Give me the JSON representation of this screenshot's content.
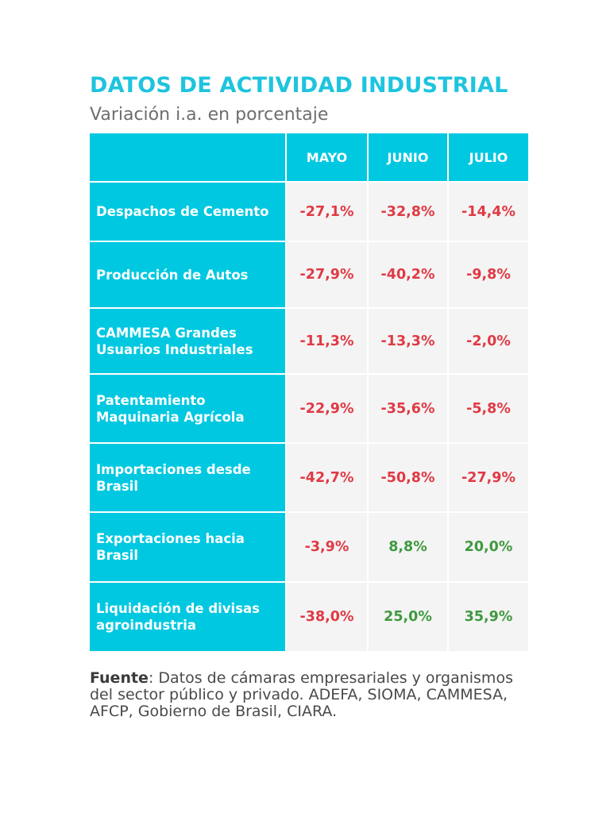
{
  "colors": {
    "title": "#1ec3de",
    "cell_bg": "#00c8e0",
    "negative": "#e03a45",
    "positive": "#3f9a3f"
  },
  "title": "DATOS DE ACTIVIDAD INDUSTRIAL",
  "subtitle": "Variación i.a. en porcentaje",
  "chart_data": {
    "type": "table",
    "title": "DATOS DE ACTIVIDAD INDUSTRIAL",
    "subtitle": "Variación i.a. en porcentaje",
    "columns": [
      "MAYO",
      "JUNIO",
      "JULIO"
    ],
    "rows": [
      {
        "label": "Despachos de Cemento",
        "values": [
          -27.1,
          -32.8,
          -14.4
        ],
        "display": [
          "-27,1%",
          "-32,8%",
          "-14,4%"
        ]
      },
      {
        "label": "Producción de Autos",
        "values": [
          -27.9,
          -40.2,
          -9.8
        ],
        "display": [
          "-27,9%",
          "-40,2%",
          "-9,8%"
        ]
      },
      {
        "label": "CAMMESA Grandes Usuarios Industriales",
        "values": [
          -11.3,
          -13.3,
          -2.0
        ],
        "display": [
          "-11,3%",
          "-13,3%",
          "-2,0%"
        ]
      },
      {
        "label": "Patentamiento Maquinaria Agrícola",
        "values": [
          -22.9,
          -35.6,
          -5.8
        ],
        "display": [
          "-22,9%",
          "-35,6%",
          "-5,8%"
        ]
      },
      {
        "label": "Importaciones desde Brasil",
        "values": [
          -42.7,
          -50.8,
          -27.9
        ],
        "display": [
          "-42,7%",
          "-50,8%",
          "-27,9%"
        ]
      },
      {
        "label": "Exportaciones hacia Brasil",
        "values": [
          -3.9,
          8.8,
          20.0
        ],
        "display": [
          "-3,9%",
          "8,8%",
          "20,0%"
        ]
      },
      {
        "label": "Liquidación de divisas agroindustria",
        "values": [
          -38.0,
          25.0,
          35.9
        ],
        "display": [
          "-38,0%",
          "25,0%",
          "35,9%"
        ]
      }
    ]
  },
  "source": {
    "label": "Fuente",
    "text": ": Datos de cámaras empresariales y organismos del sector público y privado. ADEFA, SIOMA, CAMMESA, AFCP, Gobierno de Brasil, CIARA."
  }
}
